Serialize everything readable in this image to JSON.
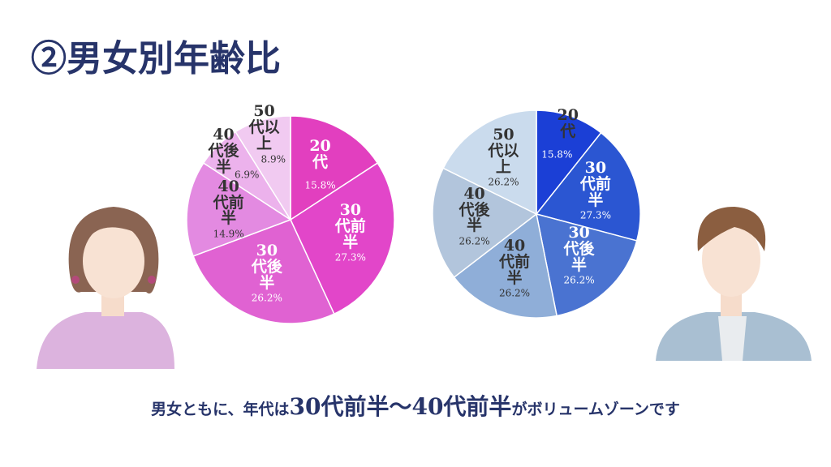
{
  "slide": {
    "title": "②男女別年齢比",
    "caption": [
      "男女ともに、年代は",
      "30代前半～40代前半",
      "がボリュームゾーンです"
    ]
  },
  "chart_data": [
    {
      "type": "pie",
      "categories": [
        "20代",
        "30代前半",
        "30代後半",
        "40代前半",
        "40代後半",
        "50代以上"
      ],
      "values": [
        15.8,
        27.3,
        26.2,
        14.9,
        6.9,
        8.9
      ],
      "value_labels": [
        "15.8%",
        "27.3%",
        "26.2%",
        "14.9%",
        "6.9%",
        "8.9%"
      ],
      "colors": [
        "#e23fbf",
        "#e246c9",
        "#e062d2",
        "#e38ae1",
        "#ecb2ec",
        "#f1caf1"
      ]
    },
    {
      "type": "pie",
      "categories": [
        "20代",
        "30代前半",
        "30代後半",
        "40代前半",
        "40代後半",
        "50代以上"
      ],
      "values": [
        15.8,
        27.3,
        26.2,
        26.2,
        26.2,
        26.2
      ],
      "value_labels": [
        "15.8%",
        "27.3%",
        "26.2%",
        "26.2%",
        "26.2%",
        "26.2%"
      ],
      "colors": [
        "#1b3fd6",
        "#2b56d2",
        "#4a73d1",
        "#8faed8",
        "#b2c5dc",
        "#cadbed"
      ]
    }
  ]
}
